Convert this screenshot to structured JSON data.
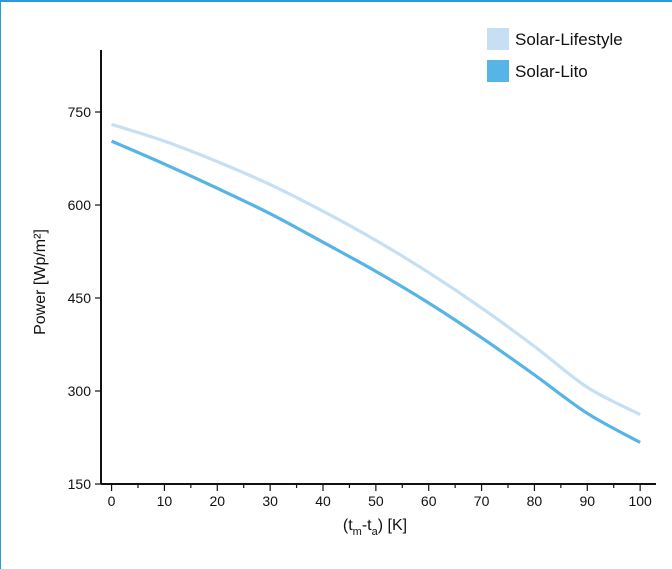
{
  "colors": {
    "frame": "#2a9bd8",
    "axis": "#111111"
  },
  "chart_data": {
    "type": "line",
    "title": "",
    "xlabel": "(t_m-t_a) [K]",
    "xlabel_parts": {
      "open": "(t",
      "sub1": "m",
      "mid": "-t",
      "sub2": "a",
      "close": ") [K]"
    },
    "ylabel": "Power [Wp/m²]",
    "xlim": [
      -2,
      103
    ],
    "ylim": [
      150,
      850
    ],
    "xticks": [
      0,
      10,
      20,
      30,
      40,
      50,
      60,
      70,
      80,
      90,
      100
    ],
    "xminor_step": 5,
    "yticks": [
      150,
      300,
      450,
      600,
      750
    ],
    "grid": false,
    "legend_position": "top-right",
    "series": [
      {
        "name": "Solar-Lifestyle",
        "color": "#c6dff3",
        "x": [
          0,
          10,
          20,
          30,
          40,
          50,
          60,
          70,
          80,
          90,
          100
        ],
        "y": [
          730,
          703,
          670,
          633,
          590,
          543,
          491,
          434,
          372,
          306,
          262
        ]
      },
      {
        "name": "Solar-Lito",
        "color": "#56b4e6",
        "x": [
          0,
          10,
          20,
          30,
          40,
          50,
          60,
          70,
          80,
          90,
          100
        ],
        "y": [
          703,
          666,
          627,
          586,
          540,
          493,
          442,
          386,
          326,
          264,
          217
        ]
      }
    ]
  }
}
